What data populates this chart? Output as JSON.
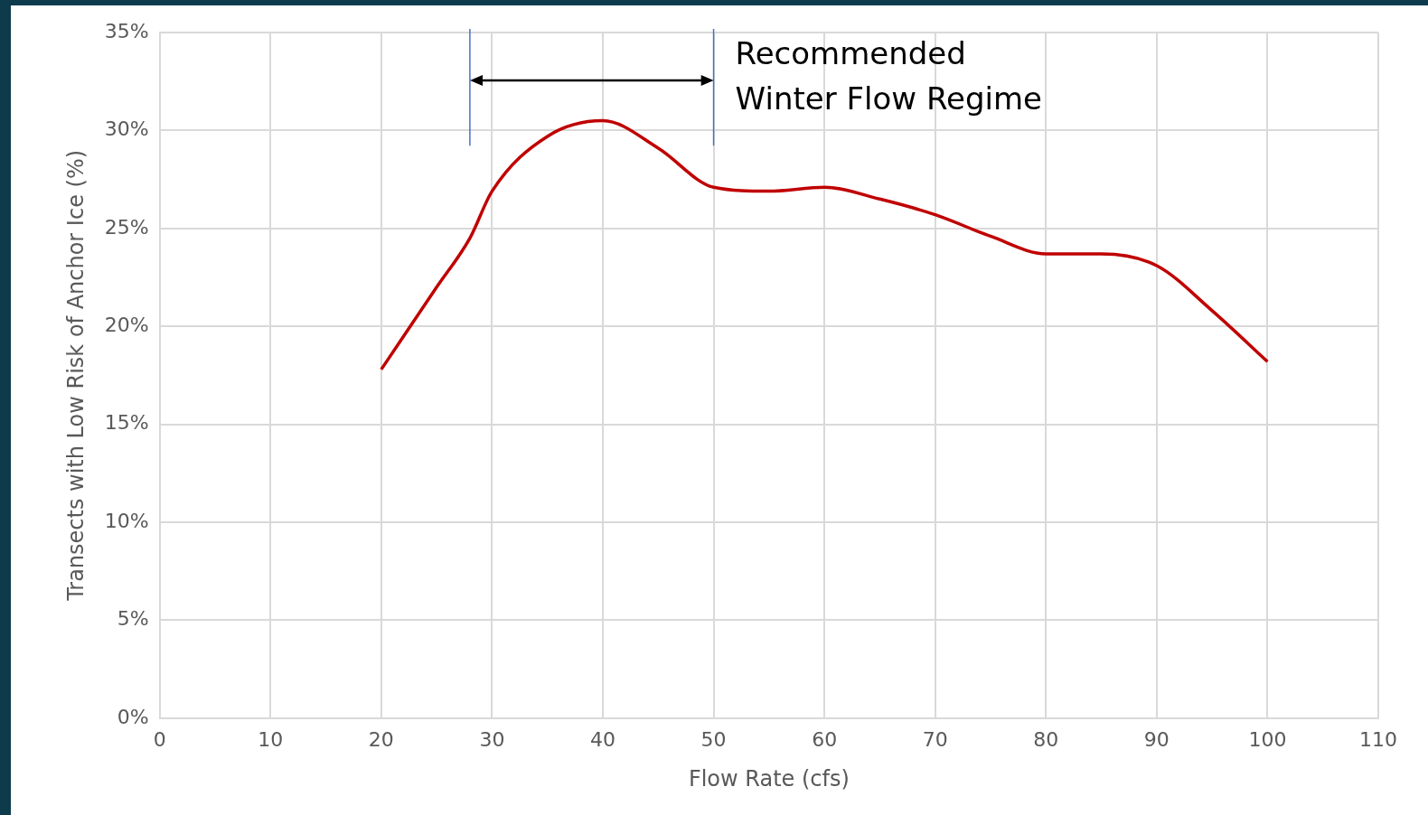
{
  "chart_data": {
    "type": "line",
    "xlabel": "Flow Rate (cfs)",
    "ylabel": "Transects with Low Risk of Anchor Ice (%)",
    "series": [
      {
        "color": "#c00000",
        "x": [
          20,
          25,
          28,
          30,
          35,
          40,
          45,
          50,
          55,
          60,
          65,
          70,
          75,
          80,
          85,
          90,
          95,
          100
        ],
        "values": [
          17.8,
          22.0,
          24.5,
          26.9,
          29.7,
          30.5,
          29.1,
          27.1,
          26.9,
          27.1,
          26.5,
          25.7,
          24.6,
          23.7,
          23.7,
          23.1,
          20.8,
          18.2
        ]
      }
    ],
    "xlim": [
      0,
      110
    ],
    "xticks": [
      0,
      10,
      20,
      30,
      40,
      50,
      60,
      70,
      80,
      90,
      100,
      110
    ],
    "ylim": [
      0,
      35
    ],
    "yticks": [
      {
        "value": 0,
        "label": "0%"
      },
      {
        "value": 5,
        "label": "5%"
      },
      {
        "value": 10,
        "label": "10%"
      },
      {
        "value": 15,
        "label": "15%"
      },
      {
        "value": 20,
        "label": "20%"
      },
      {
        "value": 25,
        "label": "25%"
      },
      {
        "value": 30,
        "label": "30%"
      },
      {
        "value": 35,
        "label": "35%"
      }
    ],
    "ref_lines": [
      {
        "axis": "x",
        "value": 28,
        "color": "#4472c4"
      },
      {
        "axis": "x",
        "value": 50,
        "color": "#4472c4"
      }
    ],
    "annotations": [
      "Recommended\nWinter Flow Regime"
    ],
    "grid": true,
    "legend": false,
    "marker": "none",
    "line_style": "solid"
  }
}
